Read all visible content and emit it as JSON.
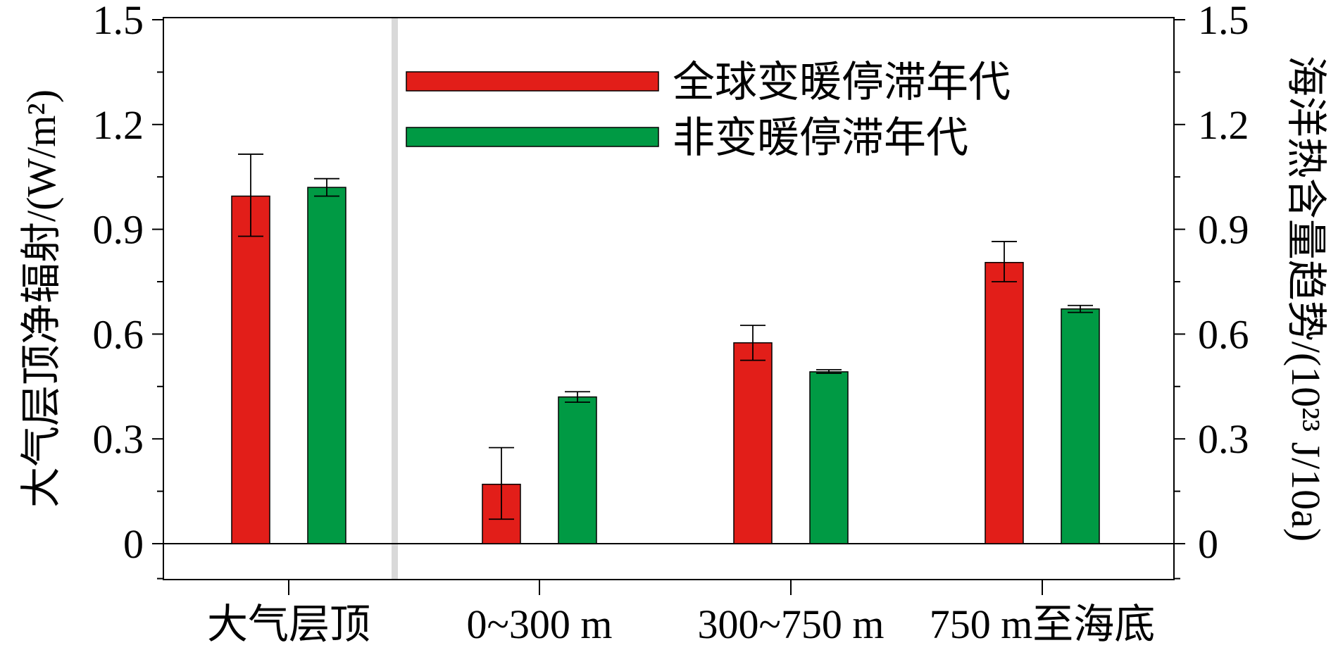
{
  "chart_data": {
    "type": "bar",
    "categories": [
      "大气层顶",
      "0~300 m",
      "300~750 m",
      "750 m至海底"
    ],
    "series": [
      {
        "name": "全球变暖停滞年代",
        "color": "#e21e19",
        "values": [
          0.995,
          0.17,
          0.575,
          0.805
        ],
        "err_low": [
          0.88,
          0.07,
          0.525,
          0.75
        ],
        "err_high": [
          1.115,
          0.275,
          0.625,
          0.865
        ]
      },
      {
        "name": "非变暖停滞年代",
        "color": "#009a44",
        "values": [
          1.02,
          0.42,
          0.492,
          0.672
        ],
        "err_low": [
          0.995,
          0.405,
          0.488,
          0.662
        ],
        "err_high": [
          1.045,
          0.435,
          0.498,
          0.682
        ]
      }
    ],
    "ylim": [
      -0.1,
      1.5
    ],
    "yticks": [
      "0",
      "0.3",
      "0.6",
      "0.9",
      "1.2",
      "1.5"
    ],
    "ylabel": "大气层顶净辐射/(W/m²)",
    "ylabel_right": "海洋热含量趋势/(10²³ J/10a)",
    "legend_position": "top-center",
    "grid": false
  }
}
